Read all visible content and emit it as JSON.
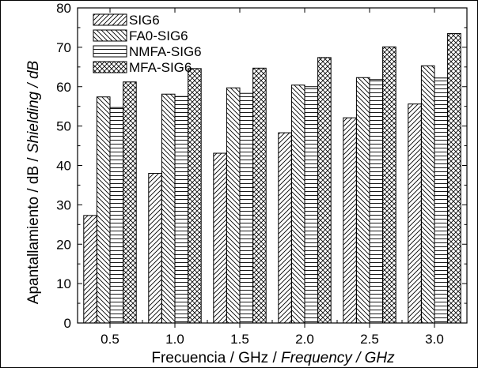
{
  "chart_data": {
    "type": "bar",
    "categories": [
      "0.5",
      "1.0",
      "1.5",
      "2.0",
      "2.5",
      "3.0"
    ],
    "series": [
      {
        "name": "SIG6",
        "pattern": "diagonal-right",
        "values": [
          27.3,
          38.0,
          43.1,
          48.3,
          52.1,
          55.6
        ]
      },
      {
        "name": "FA0-SIG6",
        "pattern": "diagonal-left",
        "values": [
          57.4,
          58.1,
          59.7,
          60.4,
          62.3,
          65.3
        ]
      },
      {
        "name": "NMFA-SIG6",
        "pattern": "horizontal",
        "values": [
          54.7,
          57.5,
          58.3,
          60.0,
          61.8,
          62.2
        ]
      },
      {
        "name": "MFA-SIG6",
        "pattern": "crosshatch",
        "values": [
          61.2,
          64.6,
          64.7,
          67.4,
          70.1,
          73.5
        ]
      }
    ],
    "title": "",
    "xlabel": {
      "plain": "Frecuencia / GHz / ",
      "italic": "Frequency / GHz"
    },
    "ylabel": {
      "plain": "Apantallamiento / dB / ",
      "italic": "Shielding / dB"
    },
    "ylim": [
      0,
      80
    ],
    "yticks": [
      "0",
      "10",
      "20",
      "30",
      "40",
      "50",
      "60",
      "70",
      "80"
    ],
    "grid": false,
    "legend_position": "top-left",
    "colors": {
      "bar_stroke": "#000000",
      "background": "#ffffff"
    }
  }
}
